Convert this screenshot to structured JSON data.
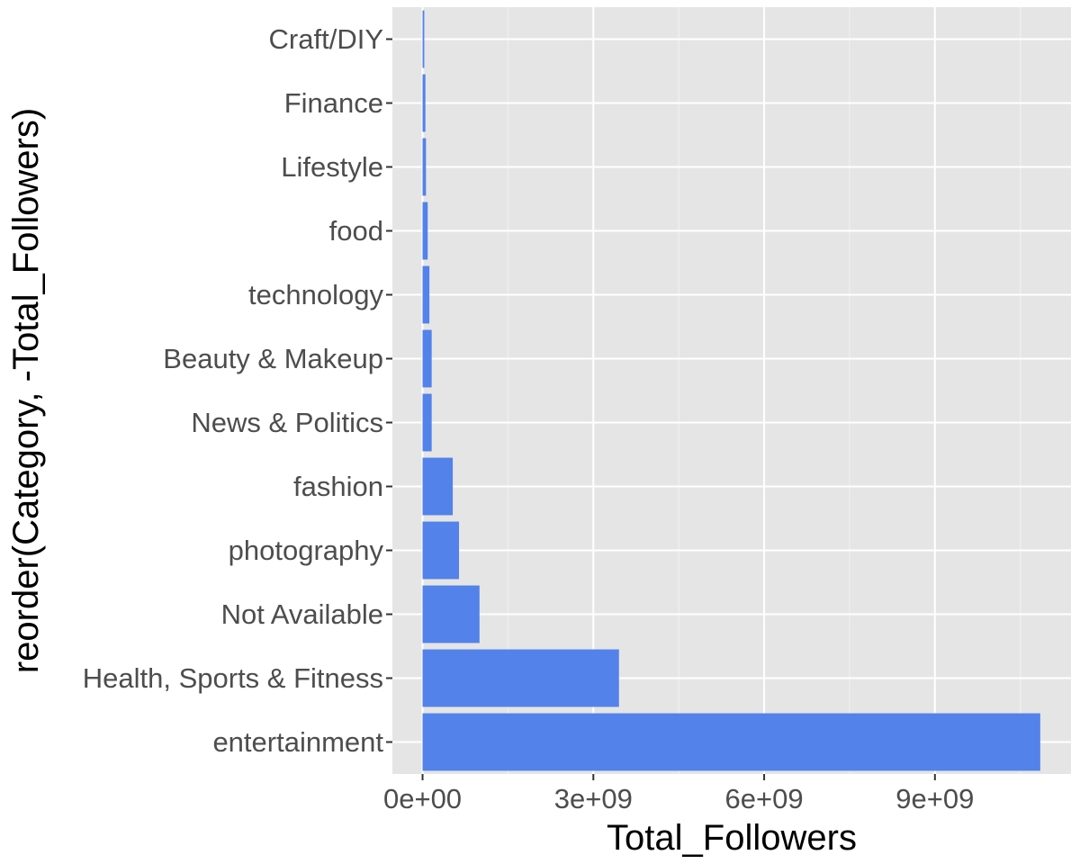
{
  "chart_data": {
    "type": "bar",
    "orientation": "horizontal",
    "xlabel": "Total_Followers",
    "ylabel": "reorder(Category, -Total_Followers)",
    "categories": [
      "entertainment",
      "Health, Sports & Fitness",
      "Not Available",
      "photography",
      "fashion",
      "News & Politics",
      "Beauty & Makeup",
      "technology",
      "food",
      "Lifestyle",
      "Finance",
      "Craft/DIY"
    ],
    "values": [
      10850000000,
      3450000000,
      1000000000,
      640000000,
      530000000,
      160000000,
      160000000,
      120000000,
      90000000,
      60000000,
      50000000,
      30000000
    ],
    "xlim": [
      -530000000,
      11390000000
    ],
    "x_ticks": [
      0,
      3000000000,
      6000000000,
      9000000000
    ],
    "x_tick_labels": [
      "0e+00",
      "3e+09",
      "6e+09",
      "9e+09"
    ],
    "grid": true,
    "legend": "none",
    "colors": {
      "bar": "#5282ea",
      "panel_background": "#e5e5e5",
      "grid_major": "#ffffff",
      "grid_minor": "#f2f2f2",
      "tick_label": "#4d4d4d",
      "axis_title": "#000000"
    }
  }
}
